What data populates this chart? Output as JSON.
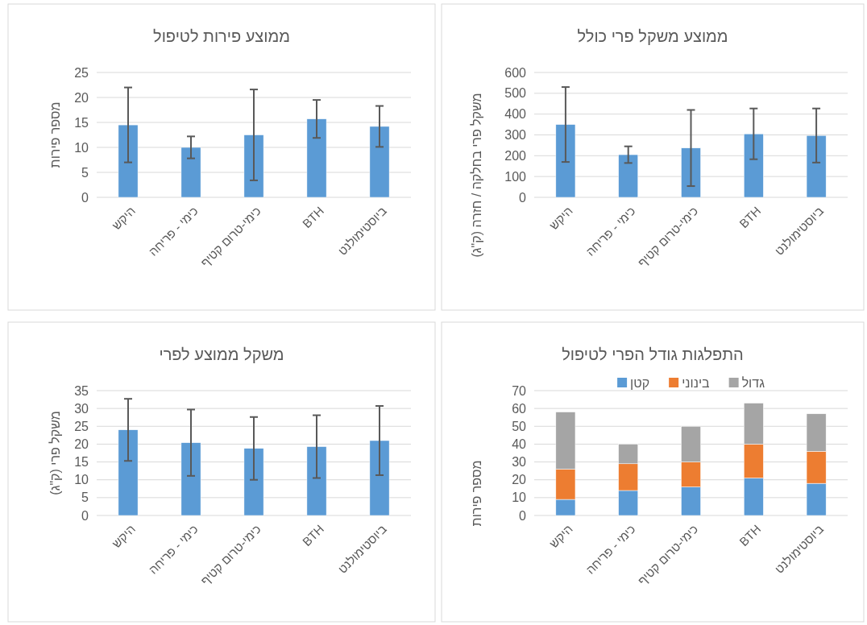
{
  "chart_data": [
    {
      "type": "bar",
      "title": "ממוצע פירות לטיפול",
      "ylabel": "מספר פירות",
      "categories": [
        "היקש",
        "כימי - פריחה",
        "כימי-טרום קטיף",
        "BTH",
        "ביוסטימולנט"
      ],
      "color": "#5b9bd5",
      "values": [
        14.5,
        10,
        12.5,
        15.7,
        14.2
      ],
      "errors": [
        7.5,
        2.2,
        9.1,
        3.8,
        4.1
      ],
      "ylim": [
        0,
        25
      ],
      "yticks": [
        0,
        5,
        10,
        15,
        20,
        25
      ],
      "grid": "y"
    },
    {
      "type": "bar",
      "title": "ממוצע משקל פרי כולל",
      "ylabel": "משקל פרי בחלקה / חזרה (ק\"ג)",
      "categories": [
        "היקש",
        "כימי - פריחה",
        "כימי-טרום קטיף",
        "BTH",
        "ביוסטימולנט"
      ],
      "color": "#5b9bd5",
      "values": [
        350,
        205,
        237,
        305,
        297
      ],
      "errors": [
        180,
        40,
        183,
        122,
        130
      ],
      "ylim": [
        0,
        600
      ],
      "yticks": [
        0,
        100,
        200,
        300,
        400,
        500,
        600
      ],
      "grid": "y"
    },
    {
      "type": "bar",
      "title": "משקל ממוצע לפרי",
      "ylabel": "משקל פרי (ק\"ג)",
      "categories": [
        "היקש",
        "כימי - פריחה",
        "כימי-טרום קטיף",
        "BTH",
        "ביוסטימולנט"
      ],
      "color": "#5b9bd5",
      "values": [
        24,
        20.4,
        18.8,
        19.3,
        21
      ],
      "errors": [
        8.7,
        9.3,
        8.8,
        8.8,
        9.7
      ],
      "ylim": [
        0,
        35
      ],
      "yticks": [
        0,
        5,
        10,
        15,
        20,
        25,
        30,
        35
      ],
      "grid": "y"
    },
    {
      "type": "bar",
      "title": "התפלגות גודל הפרי לטיפול",
      "ylabel": "מספר פירות",
      "categories": [
        "היקש",
        "כימי - פריחה",
        "כימי-טרום קטיף",
        "BTH",
        "ביוסטימולנט"
      ],
      "stacked": true,
      "series": [
        {
          "name": "קטן",
          "color": "#5b9bd5",
          "values": [
            9,
            14,
            16,
            21,
            18
          ]
        },
        {
          "name": "בינוני",
          "color": "#ed7d31",
          "values": [
            17,
            15,
            14,
            19,
            18
          ]
        },
        {
          "name": "גדול",
          "color": "#a5a5a5",
          "values": [
            32,
            11,
            20,
            23,
            21
          ]
        }
      ],
      "ylim": [
        0,
        70
      ],
      "yticks": [
        0,
        10,
        20,
        30,
        40,
        50,
        60,
        70
      ],
      "grid": "y",
      "legend": "top"
    }
  ]
}
